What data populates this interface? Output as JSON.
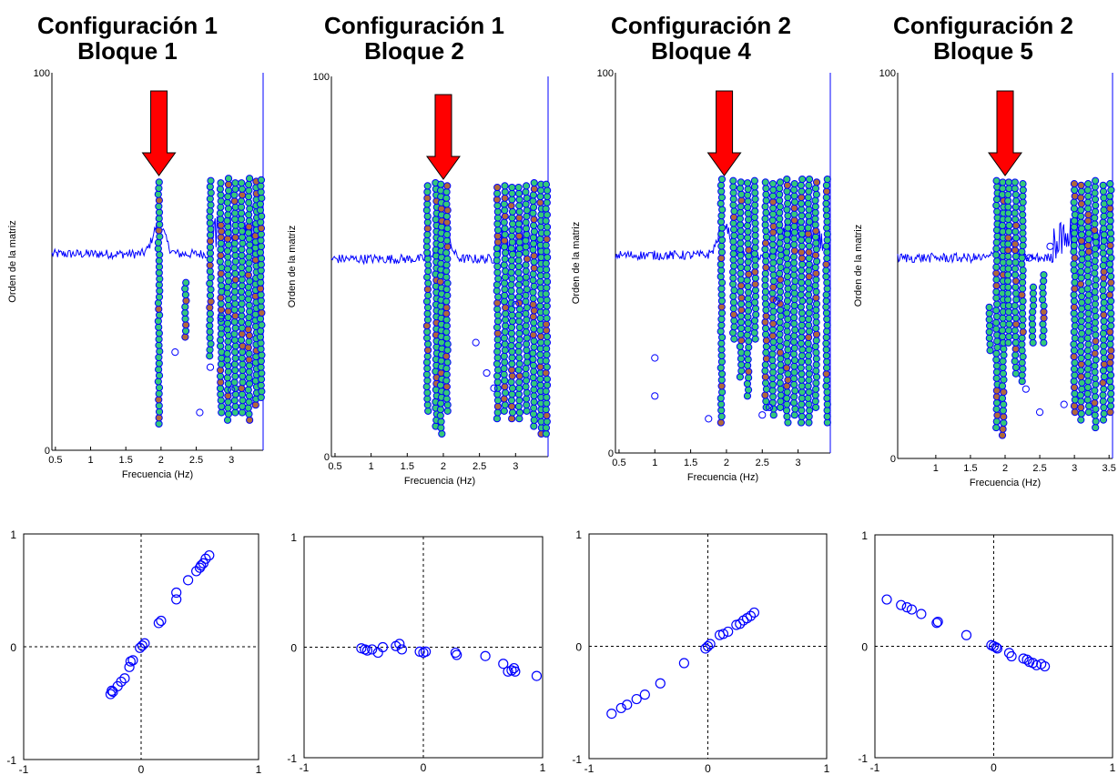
{
  "colors": {
    "axis": "#0000ff",
    "trace": "#0000ff",
    "marker_edge": "#0000ff",
    "marker_fill_stable": "#34c97a",
    "marker_fill_mode": "#b06a3a",
    "arrow": "#ff0000",
    "guide": "#000000"
  },
  "panels": [
    {
      "title_line1": "Configuración 1",
      "title_line2": "Bloque 1"
    },
    {
      "title_line1": "Configuración 1",
      "title_line2": "Bloque 2"
    },
    {
      "title_line1": "Configuración 2",
      "title_line2": "Bloque 4"
    },
    {
      "title_line1": "Configuración 2",
      "title_line2": "Bloque 5"
    }
  ],
  "chart_data": [
    {
      "type": "scatter",
      "subtype": "stabilization-diagram",
      "xlabel": "Frecuencia (Hz)",
      "ylabel": "Orden de la matriz",
      "xlim": [
        0.45,
        3.45
      ],
      "ylim": [
        0,
        100
      ],
      "xticks": [
        0.5,
        1,
        1.5,
        2,
        2.5,
        3
      ],
      "xtick_labels": [
        "0.5",
        "1",
        "1.5",
        "2",
        "2.5",
        "3"
      ],
      "yticks": [
        0,
        100
      ],
      "ytick_labels": [
        "0",
        "100"
      ],
      "arrow_x": 1.97,
      "stable_columns": [
        {
          "x": 1.97,
          "y": [
            7,
            72
          ],
          "stable": true
        },
        {
          "x": 2.35,
          "y": [
            30,
            45
          ],
          "stable": true
        },
        {
          "x": 2.7,
          "y": [
            25,
            72
          ],
          "stable": true
        },
        {
          "x": 2.85,
          "y": [
            10,
            72
          ],
          "stable": true
        },
        {
          "x": 2.95,
          "y": [
            8,
            72
          ],
          "stable": true
        },
        {
          "x": 3.05,
          "y": [
            10,
            72
          ],
          "stable": true
        },
        {
          "x": 3.15,
          "y": [
            10,
            72
          ],
          "stable": true
        },
        {
          "x": 3.25,
          "y": [
            8,
            72
          ],
          "stable": true
        },
        {
          "x": 3.35,
          "y": [
            12,
            72
          ],
          "stable": true
        },
        {
          "x": 3.42,
          "y": [
            14,
            72
          ],
          "stable": true
        }
      ],
      "scattered_points": [
        [
          2.2,
          26
        ],
        [
          2.7,
          22
        ],
        [
          2.55,
          10
        ],
        [
          2.85,
          35
        ],
        [
          3.0,
          16
        ]
      ],
      "trace_baseline": 52
    },
    {
      "type": "scatter",
      "subtype": "stabilization-diagram",
      "xlabel": "Frecuencia (Hz)",
      "ylabel": "Orden de la matriz",
      "xlim": [
        0.45,
        3.45
      ],
      "ylim": [
        0,
        100
      ],
      "xticks": [
        0.5,
        1,
        1.5,
        2,
        2.5,
        3
      ],
      "xtick_labels": [
        "0.5",
        "1",
        "1.5",
        "2",
        "2.5",
        "3"
      ],
      "yticks": [
        0,
        100
      ],
      "ytick_labels": [
        "0",
        "100"
      ],
      "arrow_x": 2.0,
      "stable_columns": [
        {
          "x": 1.78,
          "y": [
            12,
            72
          ],
          "stable": true
        },
        {
          "x": 1.9,
          "y": [
            8,
            72
          ],
          "stable": true
        },
        {
          "x": 1.97,
          "y": [
            6,
            72
          ],
          "stable": true
        },
        {
          "x": 2.05,
          "y": [
            12,
            72
          ],
          "stable": true
        },
        {
          "x": 2.75,
          "y": [
            10,
            72
          ],
          "stable": true
        },
        {
          "x": 2.85,
          "y": [
            12,
            72
          ],
          "stable": true
        },
        {
          "x": 2.95,
          "y": [
            10,
            72
          ],
          "stable": true
        },
        {
          "x": 3.05,
          "y": [
            10,
            72
          ],
          "stable": true
        },
        {
          "x": 3.15,
          "y": [
            12,
            72
          ],
          "stable": true
        },
        {
          "x": 3.25,
          "y": [
            8,
            72
          ],
          "stable": true
        },
        {
          "x": 3.35,
          "y": [
            6,
            72
          ],
          "stable": true
        },
        {
          "x": 3.43,
          "y": [
            6,
            72
          ],
          "stable": true
        }
      ],
      "scattered_points": [
        [
          2.45,
          30
        ],
        [
          2.6,
          22
        ],
        [
          2.7,
          18
        ],
        [
          3.0,
          40
        ]
      ],
      "trace_baseline": 52
    },
    {
      "type": "scatter",
      "subtype": "stabilization-diagram",
      "xlabel": "Frecuencia (Hz)",
      "ylabel": "Orden de la matriz",
      "xlim": [
        0.45,
        3.45
      ],
      "ylim": [
        0,
        100
      ],
      "xticks": [
        0.5,
        1,
        1.5,
        2,
        2.5,
        3
      ],
      "xtick_labels": [
        "0.5",
        "1",
        "1.5",
        "2",
        "2.5",
        "3"
      ],
      "yticks": [
        0,
        100
      ],
      "ytick_labels": [
        "0",
        "100"
      ],
      "arrow_x": 1.97,
      "stable_columns": [
        {
          "x": 1.93,
          "y": [
            8,
            72
          ],
          "stable": true
        },
        {
          "x": 2.1,
          "y": [
            30,
            72
          ],
          "stable": true
        },
        {
          "x": 2.2,
          "y": [
            20,
            72
          ],
          "stable": true
        },
        {
          "x": 2.3,
          "y": [
            15,
            72
          ],
          "stable": true
        },
        {
          "x": 2.4,
          "y": [
            30,
            72
          ],
          "stable": true
        },
        {
          "x": 2.55,
          "y": [
            12,
            72
          ],
          "stable": true
        },
        {
          "x": 2.65,
          "y": [
            10,
            72
          ],
          "stable": true
        },
        {
          "x": 2.75,
          "y": [
            12,
            72
          ],
          "stable": true
        },
        {
          "x": 2.85,
          "y": [
            8,
            72
          ],
          "stable": true
        },
        {
          "x": 2.95,
          "y": [
            10,
            72
          ],
          "stable": true
        },
        {
          "x": 3.05,
          "y": [
            8,
            72
          ],
          "stable": true
        },
        {
          "x": 3.15,
          "y": [
            8,
            72
          ],
          "stable": true
        },
        {
          "x": 3.25,
          "y": [
            12,
            72
          ],
          "stable": true
        },
        {
          "x": 3.4,
          "y": [
            8,
            72
          ],
          "stable": true
        }
      ],
      "scattered_points": [
        [
          1.0,
          25
        ],
        [
          1.0,
          15
        ],
        [
          1.75,
          9
        ],
        [
          2.5,
          10
        ],
        [
          2.6,
          12
        ],
        [
          2.7,
          40
        ]
      ],
      "trace_baseline": 52
    },
    {
      "type": "scatter",
      "subtype": "stabilization-diagram",
      "xlabel": "Frecuencia (Hz)",
      "ylabel": "Orden de la matriz",
      "xlim": [
        0.45,
        3.55
      ],
      "ylim": [
        0,
        100
      ],
      "xticks": [
        1,
        1.5,
        2,
        2.5,
        3,
        3.5
      ],
      "xtick_labels": [
        "1",
        "1.5",
        "2",
        "2.5",
        "3",
        "3.5"
      ],
      "yticks": [
        0,
        100
      ],
      "ytick_labels": [
        "0",
        "100"
      ],
      "arrow_x": 2.0,
      "stable_columns": [
        {
          "x": 1.78,
          "y": [
            28,
            40
          ],
          "stable": true
        },
        {
          "x": 1.88,
          "y": [
            8,
            72
          ],
          "stable": true
        },
        {
          "x": 1.97,
          "y": [
            6,
            72
          ],
          "stable": true
        },
        {
          "x": 2.05,
          "y": [
            30,
            72
          ],
          "stable": true
        },
        {
          "x": 2.15,
          "y": [
            22,
            72
          ],
          "stable": true
        },
        {
          "x": 2.25,
          "y": [
            20,
            72
          ],
          "stable": true
        },
        {
          "x": 2.4,
          "y": [
            30,
            45
          ],
          "stable": true
        },
        {
          "x": 2.55,
          "y": [
            30,
            48
          ],
          "stable": true
        },
        {
          "x": 3.0,
          "y": [
            12,
            72
          ],
          "stable": true
        },
        {
          "x": 3.1,
          "y": [
            10,
            72
          ],
          "stable": true
        },
        {
          "x": 3.2,
          "y": [
            12,
            72
          ],
          "stable": true
        },
        {
          "x": 3.3,
          "y": [
            8,
            72
          ],
          "stable": true
        },
        {
          "x": 3.42,
          "y": [
            10,
            72
          ],
          "stable": true
        },
        {
          "x": 3.52,
          "y": [
            12,
            72
          ],
          "stable": true
        }
      ],
      "scattered_points": [
        [
          2.65,
          55
        ],
        [
          2.35,
          52
        ],
        [
          2.5,
          12
        ],
        [
          2.3,
          18
        ],
        [
          2.85,
          14
        ]
      ],
      "trace_baseline": 52
    },
    {
      "type": "scatter",
      "subtype": "mode-shape-complexity",
      "xlim": [
        -1,
        1
      ],
      "ylim": [
        -1,
        1
      ],
      "xticks": [
        -1,
        0,
        1
      ],
      "xtick_labels": [
        "-1",
        "0",
        "1"
      ],
      "yticks": [
        -1,
        0,
        1
      ],
      "ytick_labels": [
        "-1",
        "0",
        "1"
      ],
      "guides": "dashed-zero-axes",
      "points": [
        [
          0.58,
          0.81
        ],
        [
          0.55,
          0.78
        ],
        [
          0.53,
          0.74
        ],
        [
          0.51,
          0.72
        ],
        [
          0.5,
          0.7
        ],
        [
          0.47,
          0.67
        ],
        [
          0.4,
          0.59
        ],
        [
          0.3,
          0.48
        ],
        [
          0.3,
          0.42
        ],
        [
          0.17,
          0.23
        ],
        [
          0.15,
          0.21
        ],
        [
          0.03,
          0.03
        ],
        [
          0.01,
          0.01
        ],
        [
          -0.01,
          -0.01
        ],
        [
          -0.07,
          -0.12
        ],
        [
          -0.09,
          -0.13
        ],
        [
          -0.1,
          -0.18
        ],
        [
          -0.14,
          -0.28
        ],
        [
          -0.17,
          -0.31
        ],
        [
          -0.2,
          -0.35
        ],
        [
          -0.24,
          -0.4
        ],
        [
          -0.26,
          -0.42
        ],
        [
          -0.25,
          -0.39
        ]
      ]
    },
    {
      "type": "scatter",
      "subtype": "mode-shape-complexity",
      "xlim": [
        -1,
        1
      ],
      "ylim": [
        -1,
        1
      ],
      "xticks": [
        -1,
        0,
        1
      ],
      "xtick_labels": [
        "-1",
        "0",
        "1"
      ],
      "yticks": [
        -1,
        0,
        1
      ],
      "ytick_labels": [
        "-1",
        "0",
        "1"
      ],
      "guides": "dashed-zero-axes",
      "points": [
        [
          -0.52,
          -0.01
        ],
        [
          -0.49,
          -0.02
        ],
        [
          -0.47,
          -0.03
        ],
        [
          -0.43,
          -0.02
        ],
        [
          -0.38,
          -0.05
        ],
        [
          -0.34,
          0.0
        ],
        [
          -0.23,
          0.01
        ],
        [
          -0.2,
          0.03
        ],
        [
          -0.18,
          -0.02
        ],
        [
          -0.03,
          -0.04
        ],
        [
          0.0,
          -0.05
        ],
        [
          0.02,
          -0.04
        ],
        [
          0.27,
          -0.05
        ],
        [
          0.28,
          -0.07
        ],
        [
          0.52,
          -0.08
        ],
        [
          0.67,
          -0.15
        ],
        [
          0.71,
          -0.22
        ],
        [
          0.74,
          -0.21
        ],
        [
          0.76,
          -0.19
        ],
        [
          0.77,
          -0.22
        ],
        [
          0.95,
          -0.26
        ]
      ]
    },
    {
      "type": "scatter",
      "subtype": "mode-shape-complexity",
      "xlim": [
        -1,
        1
      ],
      "ylim": [
        -1,
        1
      ],
      "xticks": [
        -1,
        0,
        1
      ],
      "xtick_labels": [
        "-1",
        "0",
        "1"
      ],
      "yticks": [
        -1,
        0,
        1
      ],
      "ytick_labels": [
        "-1",
        "0",
        "1"
      ],
      "guides": "dashed-zero-axes",
      "points": [
        [
          0.39,
          0.3
        ],
        [
          0.36,
          0.27
        ],
        [
          0.33,
          0.25
        ],
        [
          0.3,
          0.23
        ],
        [
          0.27,
          0.2
        ],
        [
          0.24,
          0.19
        ],
        [
          0.17,
          0.13
        ],
        [
          0.13,
          0.11
        ],
        [
          0.1,
          0.1
        ],
        [
          0.02,
          0.02
        ],
        [
          0.0,
          0.0
        ],
        [
          -0.02,
          -0.02
        ],
        [
          -0.2,
          -0.15
        ],
        [
          -0.4,
          -0.33
        ],
        [
          -0.53,
          -0.43
        ],
        [
          -0.6,
          -0.47
        ],
        [
          -0.68,
          -0.52
        ],
        [
          -0.73,
          -0.55
        ],
        [
          -0.81,
          -0.6
        ]
      ]
    },
    {
      "type": "scatter",
      "subtype": "mode-shape-complexity",
      "xlim": [
        -1,
        1
      ],
      "ylim": [
        -1,
        1
      ],
      "xticks": [
        -1,
        0,
        1
      ],
      "xtick_labels": [
        "-1",
        "0",
        "1"
      ],
      "yticks": [
        -1,
        0,
        1
      ],
      "ytick_labels": [
        "-1",
        "0",
        "1"
      ],
      "guides": "dashed-zero-axes",
      "points": [
        [
          -0.9,
          0.42
        ],
        [
          -0.78,
          0.37
        ],
        [
          -0.73,
          0.35
        ],
        [
          -0.69,
          0.33
        ],
        [
          -0.61,
          0.29
        ],
        [
          -0.48,
          0.21
        ],
        [
          -0.47,
          0.22
        ],
        [
          -0.23,
          0.1
        ],
        [
          -0.02,
          0.01
        ],
        [
          0.0,
          0.0
        ],
        [
          0.02,
          -0.01
        ],
        [
          0.03,
          -0.02
        ],
        [
          0.13,
          -0.06
        ],
        [
          0.15,
          -0.09
        ],
        [
          0.25,
          -0.11
        ],
        [
          0.28,
          -0.12
        ],
        [
          0.3,
          -0.14
        ],
        [
          0.33,
          -0.15
        ],
        [
          0.36,
          -0.17
        ],
        [
          0.4,
          -0.16
        ],
        [
          0.43,
          -0.18
        ]
      ]
    }
  ]
}
